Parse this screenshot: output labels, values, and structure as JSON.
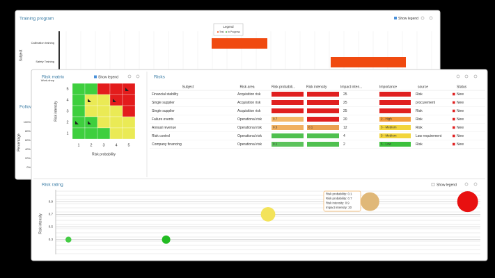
{
  "training_program": {
    "title": "Training program",
    "show_legend": "Show legend",
    "legend_title": "Legend",
    "legend_items": [
      "Test",
      "In Progress"
    ],
    "axis_label": "Subject",
    "rows": [
      "Calibration training",
      "Safety Training",
      "Work-shop"
    ]
  },
  "follow_up": {
    "title": "Follow-up",
    "axis_label": "Percentage",
    "ticks": [
      "100%",
      "80%",
      "60%",
      "40%",
      "20%",
      "0%"
    ]
  },
  "risk_matrix": {
    "title": "Risk matrix",
    "show_legend": "Show legend",
    "y_label": "Risk intensity",
    "x_label": "Risk probability",
    "yticks": [
      5,
      4,
      3,
      2,
      1
    ],
    "xticks": [
      1,
      2,
      3,
      4,
      5
    ],
    "cells": [
      [
        "#3ecf3e",
        "#3ecf3e",
        "#e31c1c",
        "#e31c1c",
        "#e31c1c"
      ],
      [
        "#3ecf3e",
        "#eaea55",
        "#eaea55",
        "#e31c1c",
        "#e31c1c"
      ],
      [
        "#3ecf3e",
        "#eaea55",
        "#eaea55",
        "#eaea55",
        "#e31c1c"
      ],
      [
        "#3ecf3e",
        "#3ecf3e",
        "#eaea55",
        "#eaea55",
        "#eaea55"
      ],
      [
        "#3ecf3e",
        "#3ecf3e",
        "#3ecf3e",
        "#eaea55",
        "#eaea55"
      ]
    ]
  },
  "risks": {
    "title": "Risks",
    "columns": [
      "Subject",
      "Risk area",
      "Risk probabili...",
      "Risk intensity",
      "Impact inten...",
      "Importance",
      "source",
      "Status"
    ],
    "rows": [
      {
        "subject": "Financial stability",
        "area": "Acquisition risk",
        "probability": {
          "color": "#e02020"
        },
        "intensity": {
          "color": "#e02020"
        },
        "impact": "25",
        "importance": {
          "color": "#e02020"
        },
        "source": "Risk",
        "status": "New"
      },
      {
        "subject": "Single supplier",
        "area": "Acquisition risk",
        "probability": {
          "color": "#e02020"
        },
        "intensity": {
          "color": "#e02020"
        },
        "impact": "25",
        "importance": {
          "color": "#e02020"
        },
        "source": "procurement",
        "status": "New"
      },
      {
        "subject": "Single supplier",
        "area": "Acquisition risk",
        "probability": {
          "color": "#e02020"
        },
        "intensity": {
          "color": "#e02020"
        },
        "impact": "25",
        "importance": {
          "color": "#e02020"
        },
        "source": "Risk",
        "status": "New"
      },
      {
        "subject": "Failure events",
        "area": "Operational risk",
        "probability": {
          "color": "#f3b868",
          "label": "0.7"
        },
        "intensity": {
          "color": "#e02020"
        },
        "impact": "20",
        "importance": {
          "color": "#f39c3c",
          "label": "2 - High"
        },
        "source": "Risk",
        "status": "New"
      },
      {
        "subject": "Annual revenue",
        "area": "Operational risk",
        "probability": {
          "color": "#f0b060",
          "label": "0.5"
        },
        "intensity": {
          "color": "#eaa050",
          "label": "0.1"
        },
        "impact": "12",
        "importance": {
          "color": "#f2d53c",
          "label": "3 - Medium"
        },
        "source": "Risk",
        "status": "New"
      },
      {
        "subject": "Risk control",
        "area": "Operational risk",
        "probability": {
          "color": "#4fc04f"
        },
        "intensity": {
          "color": "#4fc04f"
        },
        "impact": "4",
        "importance": {
          "color": "#f2d53c",
          "label": "3 - Medium"
        },
        "source": "Law requirement",
        "status": "New"
      },
      {
        "subject": "Company financing",
        "area": "Operational risk",
        "probability": {
          "color": "#5cc35c",
          "label": "0.1"
        },
        "intensity": {
          "color": "#4fc04f"
        },
        "impact": "2",
        "importance": {
          "color": "#3cc03c",
          "label": "5 - Low"
        },
        "source": "Risk",
        "status": "New"
      }
    ]
  },
  "risk_rating": {
    "title": "Risk rating",
    "show_legend": "Show legend",
    "y_label": "Risk intensity",
    "ylim": [
      0.1,
      1.0
    ],
    "yticks": [
      0.9,
      0.7,
      0.5,
      0.3
    ],
    "xlim": [
      0,
      1
    ],
    "x": [
      0.03,
      0.26,
      0.5,
      0.74,
      0.97
    ],
    "y": [
      0.3,
      0.3,
      0.7,
      0.9,
      0.9
    ],
    "size": [
      2,
      4,
      12,
      20,
      25
    ],
    "colors": [
      "#44cc44",
      "#22bb22",
      "#f3e35a",
      "#e0b878",
      "#e81010"
    ],
    "tooltip": [
      "Risk probability: 0.1",
      "Risk probability: 0.7",
      "Risk intensity: 0.9",
      "Impact intensity: 20"
    ]
  }
}
